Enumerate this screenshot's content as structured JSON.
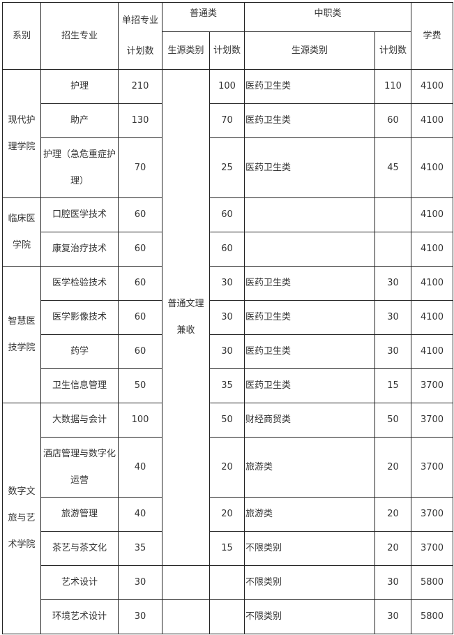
{
  "header": {
    "department": "系别",
    "major": "招生专业",
    "plan_total": "单招专业计划数",
    "general": "普通类",
    "vocational": "中职类",
    "source_type": "生源类别",
    "plan_count": "计划数",
    "tuition": "学费"
  },
  "general_source_merged": "普通文理兼收",
  "departments": [
    {
      "name": "现代护理学院",
      "majors": [
        {
          "name": "护理",
          "plan": "210",
          "gen_plan": "100",
          "voc_source": "医药卫生类",
          "voc_plan": "110",
          "tuition": "4100"
        },
        {
          "name": "助产",
          "plan": "130",
          "gen_plan": "70",
          "voc_source": "医药卫生类",
          "voc_plan": "60",
          "tuition": "4100"
        },
        {
          "name": "护理（急危重症护理）",
          "plan": "70",
          "gen_plan": "25",
          "voc_source": "医药卫生类",
          "voc_plan": "45",
          "tuition": "4100"
        }
      ]
    },
    {
      "name": "临床医学院",
      "majors": [
        {
          "name": "口腔医学技术",
          "plan": "60",
          "gen_plan": "60",
          "voc_source": "",
          "voc_plan": "",
          "tuition": "4100"
        },
        {
          "name": "康复治疗技术",
          "plan": "60",
          "gen_plan": "60",
          "voc_source": "",
          "voc_plan": "",
          "tuition": "4100"
        }
      ]
    },
    {
      "name": "智慧医技学院",
      "majors": [
        {
          "name": "医学检验技术",
          "plan": "60",
          "gen_plan": "30",
          "voc_source": "医药卫生类",
          "voc_plan": "30",
          "tuition": "4100"
        },
        {
          "name": "医学影像技术",
          "plan": "60",
          "gen_plan": "30",
          "voc_source": "医药卫生类",
          "voc_plan": "30",
          "tuition": "4100"
        },
        {
          "name": "药学",
          "plan": "60",
          "gen_plan": "30",
          "voc_source": "医药卫生类",
          "voc_plan": "30",
          "tuition": "4100"
        },
        {
          "name": "卫生信息管理",
          "plan": "50",
          "gen_plan": "35",
          "voc_source": "医药卫生类",
          "voc_plan": "15",
          "tuition": "3700"
        }
      ]
    },
    {
      "name": "数字文旅与艺术学院",
      "majors": [
        {
          "name": "大数据与会计",
          "plan": "100",
          "gen_plan": "50",
          "voc_source": "财经商贸类",
          "voc_plan": "50",
          "tuition": "3700"
        },
        {
          "name": "酒店管理与数字化运营",
          "plan": "40",
          "gen_plan": "20",
          "voc_source": "旅游类",
          "voc_plan": "20",
          "tuition": "3700"
        },
        {
          "name": "旅游管理",
          "plan": "40",
          "gen_plan": "20",
          "voc_source": "旅游类",
          "voc_plan": "20",
          "tuition": "3700"
        },
        {
          "name": "茶艺与茶文化",
          "plan": "35",
          "gen_plan": "15",
          "voc_source": "不限类别",
          "voc_plan": "20",
          "tuition": "3700"
        },
        {
          "name": "艺术设计",
          "plan": "30",
          "gen_plan": "",
          "voc_source": "不限类别",
          "voc_plan": "30",
          "tuition": "5800",
          "no_general": true
        },
        {
          "name": "环境艺术设计",
          "plan": "30",
          "gen_plan": "",
          "voc_source": "不限类别",
          "voc_plan": "30",
          "tuition": "5800",
          "no_general": true
        }
      ]
    }
  ]
}
